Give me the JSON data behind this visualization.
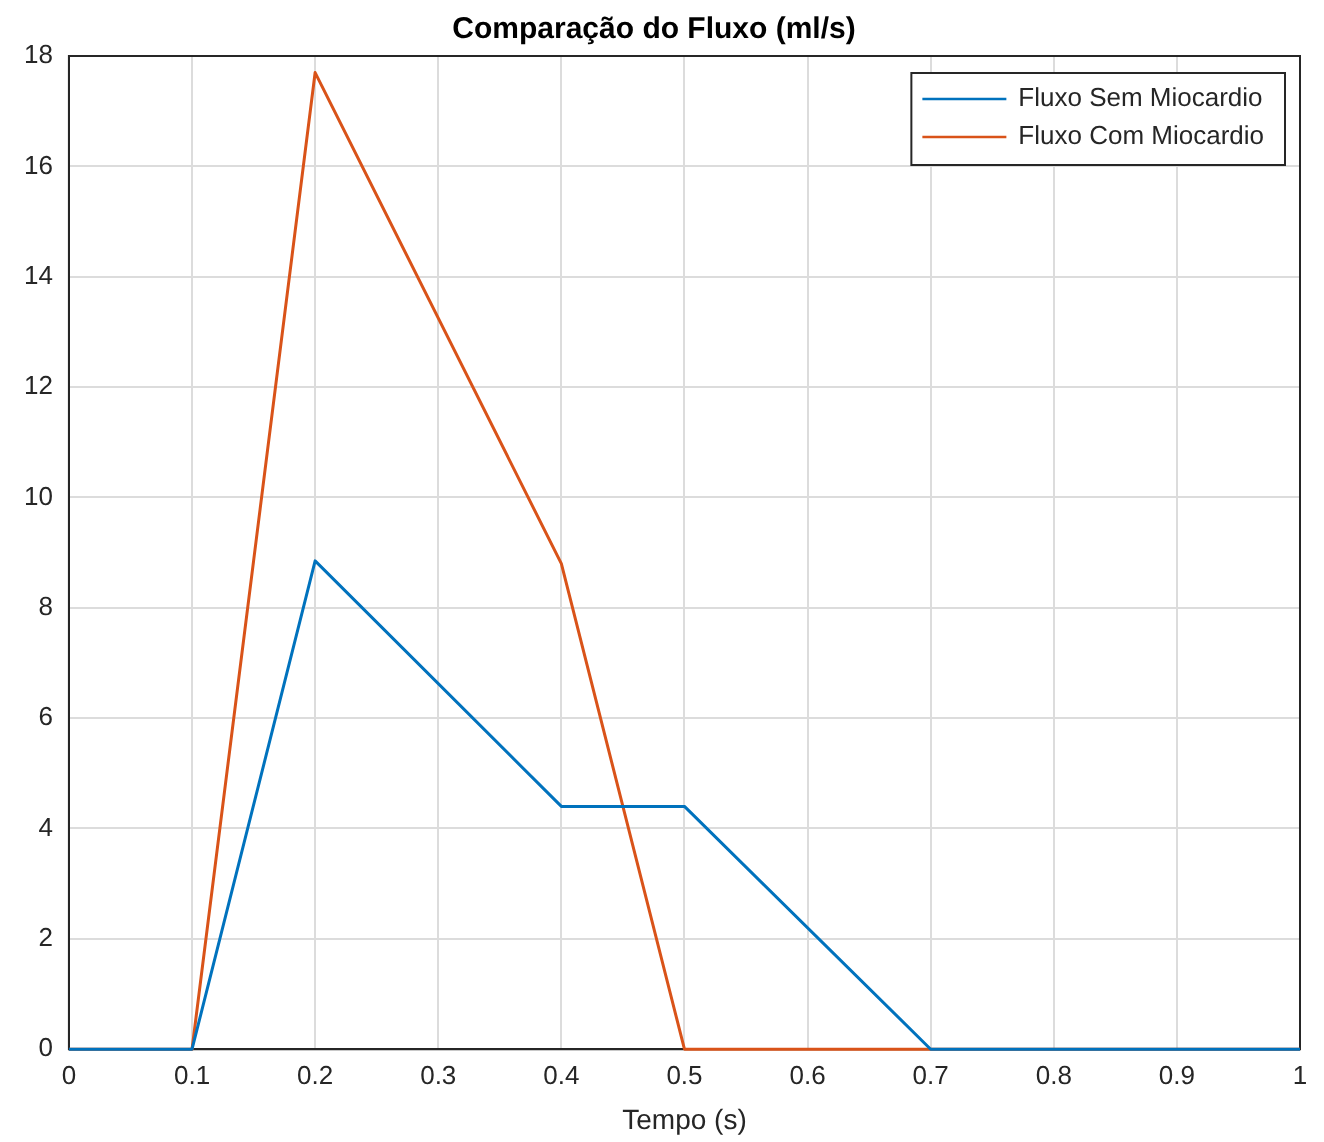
{
  "chart_data": {
    "type": "line",
    "title": "Comparação do Fluxo (ml/s)",
    "xlabel": "Tempo (s)",
    "xlim": [
      0,
      1
    ],
    "xticks": [
      0,
      0.1,
      0.2,
      0.3,
      0.4,
      0.5,
      0.6,
      0.7,
      0.8,
      0.9,
      1
    ],
    "ylim": [
      0,
      18
    ],
    "yticks": [
      0,
      2,
      4,
      6,
      8,
      10,
      12,
      14,
      16,
      18
    ],
    "grid": true,
    "legend": "top right",
    "marker": "none",
    "line_style": "solid",
    "series": [
      {
        "name": "Fluxo Sem Miocardio",
        "color": "#0072bd",
        "x": [
          0,
          0.1,
          0.2,
          0.4,
          0.5,
          0.7,
          1
        ],
        "values": [
          0,
          0,
          8.85,
          4.4,
          4.4,
          0,
          0
        ]
      },
      {
        "name": "Fluxo Com Miocardio",
        "color": "#d95319",
        "x": [
          0,
          0.1,
          0.2,
          0.4,
          0.5,
          1
        ],
        "values": [
          0,
          0,
          17.7,
          8.8,
          0,
          0
        ]
      }
    ]
  }
}
